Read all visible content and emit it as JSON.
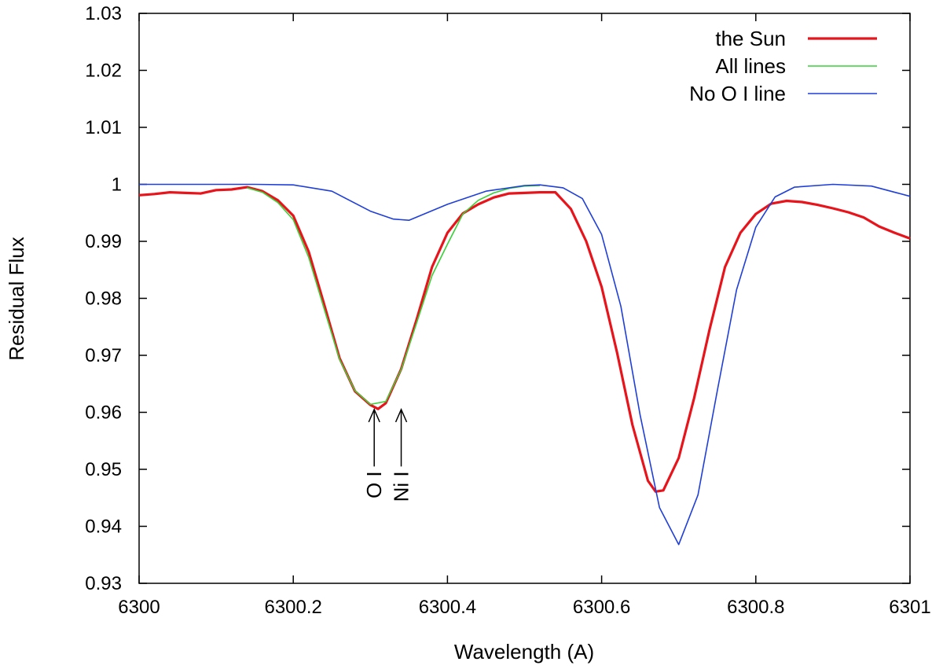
{
  "chart_data": {
    "type": "line",
    "xlabel": "Wavelength (A)",
    "ylabel": "Residual Flux",
    "xlim": [
      6300,
      6301
    ],
    "ylim": [
      0.93,
      1.03
    ],
    "x_ticks": [
      "6300",
      "6300.2",
      "6300.4",
      "6300.6",
      "6300.8",
      "6301"
    ],
    "x_tick_values": [
      6300,
      6300.2,
      6300.4,
      6300.6,
      6300.8,
      6301
    ],
    "y_ticks": [
      "0.93",
      "0.94",
      "0.95",
      "0.96",
      "0.97",
      "0.98",
      "0.99",
      "1",
      "1.01",
      "1.02",
      "1.03"
    ],
    "y_tick_values": [
      0.93,
      0.94,
      0.95,
      0.96,
      0.97,
      0.98,
      0.99,
      1.0,
      1.01,
      1.02,
      1.03
    ],
    "grid": false,
    "legend_position": "top-right",
    "series": [
      {
        "name": "the Sun",
        "color": "#e8141b",
        "x": [
          6300.0,
          6300.02,
          6300.04,
          6300.06,
          6300.08,
          6300.1,
          6300.12,
          6300.14,
          6300.16,
          6300.18,
          6300.2,
          6300.22,
          6300.24,
          6300.26,
          6300.28,
          6300.3,
          6300.31,
          6300.32,
          6300.34,
          6300.36,
          6300.38,
          6300.4,
          6300.42,
          6300.44,
          6300.46,
          6300.48,
          6300.5,
          6300.52,
          6300.54,
          6300.56,
          6300.58,
          6300.6,
          6300.62,
          6300.64,
          6300.66,
          6300.67,
          6300.68,
          6300.7,
          6300.72,
          6300.74,
          6300.76,
          6300.78,
          6300.8,
          6300.82,
          6300.84,
          6300.86,
          6300.88,
          6300.9,
          6300.92,
          6300.94,
          6300.96,
          6300.98,
          6301.0
        ],
        "y": [
          0.9981,
          0.9983,
          0.9986,
          0.9985,
          0.9984,
          0.999,
          0.9991,
          0.9995,
          0.9988,
          0.9972,
          0.9945,
          0.9882,
          0.979,
          0.9695,
          0.9637,
          0.9613,
          0.9606,
          0.9616,
          0.9676,
          0.9763,
          0.9855,
          0.9915,
          0.9949,
          0.9965,
          0.9977,
          0.9984,
          0.9985,
          0.9986,
          0.9986,
          0.9957,
          0.99,
          0.982,
          0.9705,
          0.9578,
          0.948,
          0.9461,
          0.9463,
          0.952,
          0.9625,
          0.9745,
          0.9855,
          0.9915,
          0.9948,
          0.9966,
          0.9971,
          0.9969,
          0.9964,
          0.9958,
          0.9951,
          0.9942,
          0.9926,
          0.9915,
          0.9905
        ]
      },
      {
        "name": "All lines",
        "color": "#39d039",
        "x": [
          6300.14,
          6300.16,
          6300.18,
          6300.2,
          6300.22,
          6300.24,
          6300.26,
          6300.28,
          6300.3,
          6300.32,
          6300.34,
          6300.36,
          6300.38,
          6300.4,
          6300.42,
          6300.44,
          6300.46,
          6300.48,
          6300.5,
          6300.52
        ],
        "y": [
          0.9994,
          0.9986,
          0.9968,
          0.9938,
          0.9872,
          0.9782,
          0.9693,
          0.9638,
          0.9614,
          0.9619,
          0.9675,
          0.9757,
          0.984,
          0.9895,
          0.9948,
          0.9972,
          0.9985,
          0.9993,
          0.9997,
          0.9998
        ]
      },
      {
        "name": "No O I line",
        "color": "#1f3fd8",
        "x": [
          6300.0,
          6300.1,
          6300.15,
          6300.2,
          6300.25,
          6300.3,
          6300.33,
          6300.35,
          6300.4,
          6300.45,
          6300.5,
          6300.52,
          6300.55,
          6300.575,
          6300.6,
          6300.625,
          6300.65,
          6300.675,
          6300.7,
          6300.725,
          6300.75,
          6300.775,
          6300.8,
          6300.825,
          6300.85,
          6300.9,
          6300.95,
          6301.0
        ],
        "y": [
          1.0,
          1.0,
          1.0,
          0.9999,
          0.9988,
          0.9953,
          0.9939,
          0.9937,
          0.9965,
          0.9988,
          0.9998,
          0.9999,
          0.9994,
          0.9975,
          0.9912,
          0.9786,
          0.9595,
          0.9433,
          0.9368,
          0.9455,
          0.9638,
          0.9815,
          0.9925,
          0.9978,
          0.9995,
          1.0,
          0.9997,
          0.9979
        ]
      }
    ],
    "annotations": [
      {
        "text": "O I",
        "x": 6300.305,
        "y_tip": 0.9605,
        "y_tail": 0.9505
      },
      {
        "text": "Ni I",
        "x": 6300.34,
        "y_tip": 0.9605,
        "y_tail": 0.9505
      }
    ]
  }
}
